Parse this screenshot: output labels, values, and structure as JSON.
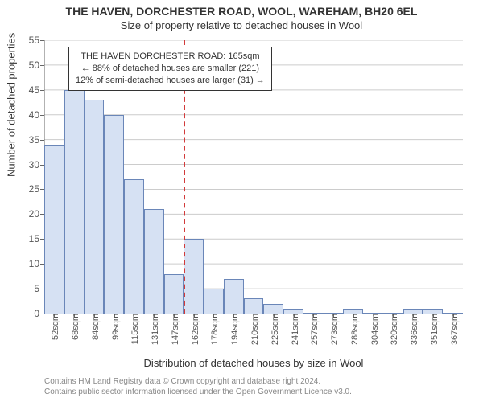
{
  "chart": {
    "type": "histogram",
    "title": "THE HAVEN, DORCHESTER ROAD, WOOL, WAREHAM, BH20 6EL",
    "subtitle": "Size of property relative to detached houses in Wool",
    "y_axis_title": "Number of detached properties",
    "x_axis_title": "Distribution of detached houses by size in Wool",
    "background_color": "#ffffff",
    "grid_color": "#cccccc",
    "axis_color": "#666666",
    "tick_font_size": 12,
    "title_font_size": 14,
    "bar_fill": "#d6e1f3",
    "bar_stroke": "#6a86b8",
    "bar_width_ratio": 1.0,
    "y": {
      "min": 0,
      "max": 55,
      "ticks": [
        0,
        5,
        10,
        15,
        20,
        25,
        30,
        35,
        40,
        45,
        50,
        55
      ]
    },
    "x_labels": [
      "52sqm",
      "68sqm",
      "84sqm",
      "99sqm",
      "115sqm",
      "131sqm",
      "147sqm",
      "162sqm",
      "178sqm",
      "194sqm",
      "210sqm",
      "225sqm",
      "241sqm",
      "257sqm",
      "273sqm",
      "288sqm",
      "304sqm",
      "320sqm",
      "336sqm",
      "351sqm",
      "367sqm"
    ],
    "values": [
      34,
      45,
      43,
      40,
      27,
      21,
      8,
      15,
      5,
      7,
      3,
      2,
      1,
      0,
      0,
      1,
      0,
      0,
      1,
      1,
      0
    ],
    "reference_line": {
      "after_category_index": 7,
      "color": "#d23a3a"
    },
    "annotation": {
      "line1": "THE HAVEN DORCHESTER ROAD: 165sqm",
      "line2": "← 88% of detached houses are smaller (221)",
      "line3": "12% of semi-detached houses are larger (31) →",
      "border_color": "#333333"
    },
    "footer_line1": "Contains HM Land Registry data © Crown copyright and database right 2024.",
    "footer_line2": "Contains public sector information licensed under the Open Government Licence v3.0."
  }
}
